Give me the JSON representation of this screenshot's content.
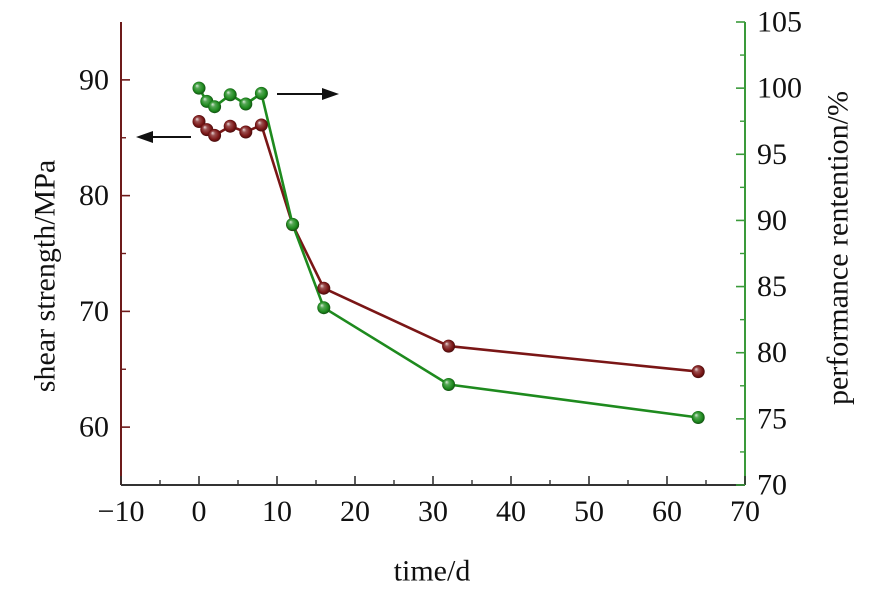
{
  "chart_data": {
    "type": "line",
    "xlabel": "time/d",
    "ylabel": "shear strength/MPa",
    "ylabel_right": "performance rentention/%",
    "xlim": [
      -10,
      70
    ],
    "ylim": [
      55,
      95
    ],
    "ylim_right": [
      70,
      105
    ],
    "xticks": [
      -10,
      0,
      10,
      20,
      30,
      40,
      50,
      60,
      70
    ],
    "xtick_labels": [
      "−10",
      "0",
      "10",
      "20",
      "30",
      "40",
      "50",
      "60",
      "70"
    ],
    "yticks": [
      60,
      70,
      80,
      90
    ],
    "ytick_labels": [
      "60",
      "70",
      "80",
      "90"
    ],
    "yticks_right": [
      70,
      75,
      80,
      85,
      90,
      95,
      100,
      105
    ],
    "ytick_labels_right": [
      "70",
      "75",
      "80",
      "85",
      "90",
      "95",
      "100",
      "105"
    ],
    "grid": false,
    "legend": "none",
    "x": [
      0,
      1,
      2,
      4,
      6,
      8,
      12,
      16,
      32,
      64
    ],
    "series": [
      {
        "axis": "left",
        "color": "#7a1616",
        "values": [
          86.4,
          85.7,
          85.2,
          86.0,
          85.5,
          86.1,
          77.5,
          72.0,
          67.0,
          64.8
        ]
      },
      {
        "axis": "right",
        "color": "#1e8a1e",
        "values": [
          100.0,
          99.0,
          98.6,
          99.5,
          98.8,
          99.6,
          89.7,
          83.4,
          77.6,
          75.1
        ]
      }
    ],
    "axis_colors": {
      "left": "#6e1a1a",
      "right": "#3a9a3a",
      "bottom": "#333333"
    }
  }
}
